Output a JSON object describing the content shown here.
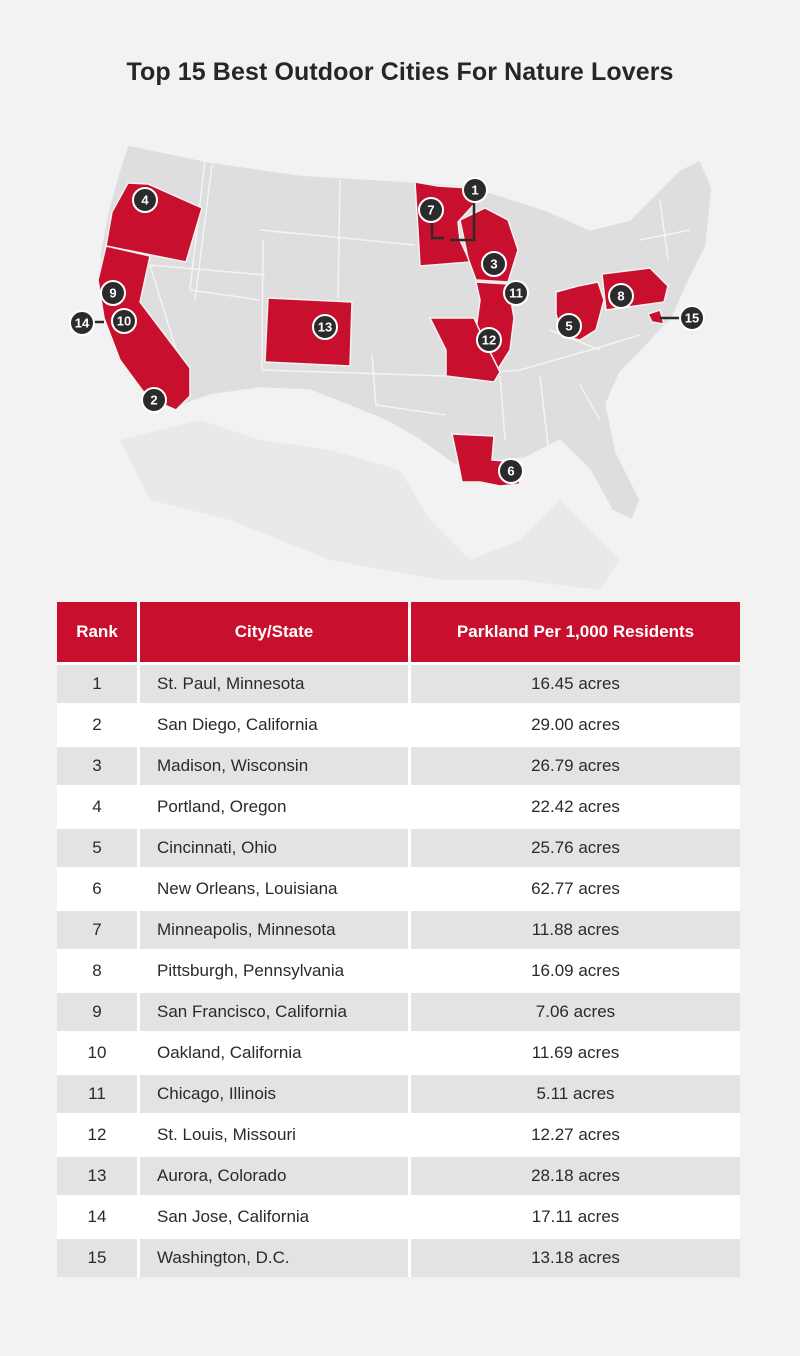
{
  "title": "Top 15 Best Outdoor Cities For Nature Lovers",
  "colors": {
    "highlight": "#c8102e",
    "base_state": "#dedede",
    "marker": "#2b2b2b",
    "background": "#f2f2f2"
  },
  "map": {
    "highlighted_states": [
      "Oregon",
      "California",
      "Colorado",
      "Minnesota",
      "Wisconsin",
      "Illinois",
      "Missouri",
      "Louisiana",
      "Ohio",
      "Pennsylvania",
      "Maryland"
    ],
    "markers": [
      {
        "rank": "1",
        "city": "St. Paul, Minnesota"
      },
      {
        "rank": "2",
        "city": "San Diego, California"
      },
      {
        "rank": "3",
        "city": "Madison, Wisconsin"
      },
      {
        "rank": "4",
        "city": "Portland, Oregon"
      },
      {
        "rank": "5",
        "city": "Cincinnati, Ohio"
      },
      {
        "rank": "6",
        "city": "New Orleans, Louisiana"
      },
      {
        "rank": "7",
        "city": "Minneapolis, Minnesota"
      },
      {
        "rank": "8",
        "city": "Pittsburgh, Pennsylvania"
      },
      {
        "rank": "9",
        "city": "San Francisco, California"
      },
      {
        "rank": "10",
        "city": "Oakland, California"
      },
      {
        "rank": "11",
        "city": "Chicago, Illinois"
      },
      {
        "rank": "12",
        "city": "St. Louis, Missouri"
      },
      {
        "rank": "13",
        "city": "Aurora, Colorado"
      },
      {
        "rank": "14",
        "city": "San Jose, California"
      },
      {
        "rank": "15",
        "city": "Washington, D.C."
      }
    ]
  },
  "table": {
    "headers": [
      "Rank",
      "City/State",
      "Parkland Per 1,000 Residents"
    ],
    "rows": [
      {
        "rank": "1",
        "city": "St. Paul, Minnesota",
        "parkland": "16.45 acres"
      },
      {
        "rank": "2",
        "city": "San Diego, California",
        "parkland": "29.00 acres"
      },
      {
        "rank": "3",
        "city": "Madison, Wisconsin",
        "parkland": "26.79 acres"
      },
      {
        "rank": "4",
        "city": "Portland, Oregon",
        "parkland": "22.42 acres"
      },
      {
        "rank": "5",
        "city": "Cincinnati, Ohio",
        "parkland": "25.76 acres"
      },
      {
        "rank": "6",
        "city": "New Orleans, Louisiana",
        "parkland": "62.77 acres"
      },
      {
        "rank": "7",
        "city": "Minneapolis, Minnesota",
        "parkland": "11.88 acres"
      },
      {
        "rank": "8",
        "city": "Pittsburgh, Pennsylvania",
        "parkland": "16.09 acres"
      },
      {
        "rank": "9",
        "city": "San Francisco, California",
        "parkland": "7.06 acres"
      },
      {
        "rank": "10",
        "city": "Oakland, California",
        "parkland": "11.69 acres"
      },
      {
        "rank": "11",
        "city": "Chicago, Illinois",
        "parkland": "5.11 acres"
      },
      {
        "rank": "12",
        "city": "St. Louis, Missouri",
        "parkland": "12.27 acres"
      },
      {
        "rank": "13",
        "city": "Aurora, Colorado",
        "parkland": "28.18 acres"
      },
      {
        "rank": "14",
        "city": "San Jose, California",
        "parkland": "17.11 acres"
      },
      {
        "rank": "15",
        "city": "Washington, D.C.",
        "parkland": "13.18 acres"
      }
    ]
  }
}
